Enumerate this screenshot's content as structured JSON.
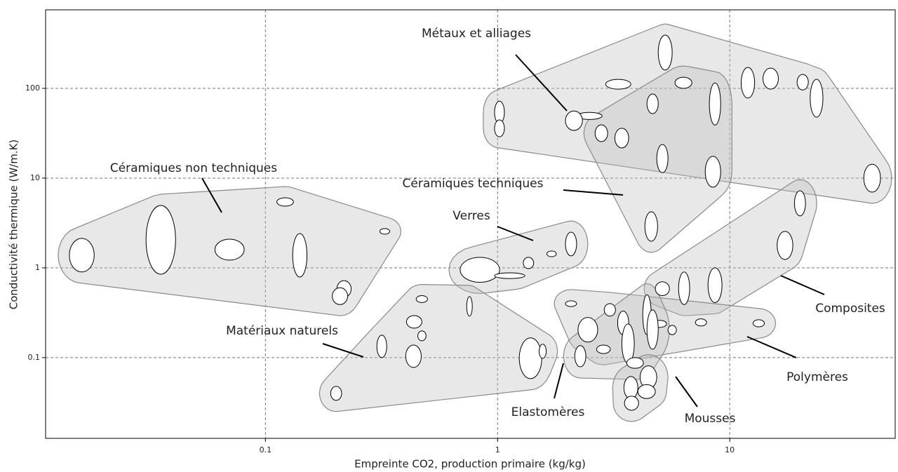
{
  "chart_data": {
    "type": "bubble-envelopes",
    "x_label": "Empreinte CO2, production primaire (kg/kg)",
    "y_label": "Conductivité thermique (W/m.K)",
    "xlog": true,
    "ylog": true,
    "grid": true,
    "xlim": [
      0.0113,
      51.6
    ],
    "ylim": [
      0.0126,
      750
    ],
    "xticks": [
      0.1,
      1,
      10
    ],
    "yticks": [
      0.1,
      1,
      10,
      100
    ],
    "families": [
      {
        "name": "Céramiques non techniques",
        "items": [
          {
            "x": [
              0.0143,
              0.0183
            ],
            "y": [
              0.9,
              2.13
            ]
          },
          {
            "x": [
              0.0306,
              0.041
            ],
            "y": [
              0.85,
              4.96
            ]
          },
          {
            "x": [
              0.0606,
              0.081
            ],
            "y": [
              1.22,
              2.09
            ]
          },
          {
            "x": [
              0.131,
              0.151
            ],
            "y": [
              0.79,
              2.41
            ]
          },
          {
            "x": [
              0.112,
              0.132
            ],
            "y": [
              4.87,
              6.04
            ]
          },
          {
            "x": [
              0.311,
              0.343
            ],
            "y": [
              2.37,
              2.74
            ]
          },
          {
            "x": [
              0.203,
              0.234
            ],
            "y": [
              0.47,
              0.72
            ]
          },
          {
            "x": [
              0.194,
              0.226
            ],
            "y": [
              0.39,
              0.6
            ]
          }
        ]
      },
      {
        "name": "Verres",
        "items": [
          {
            "x": [
              0.69,
              1.02
            ],
            "y": [
              0.69,
              1.31
            ]
          },
          {
            "x": [
              0.97,
              1.31
            ],
            "y": [
              0.76,
              0.88
            ]
          },
          {
            "x": [
              1.29,
              1.43
            ],
            "y": [
              0.98,
              1.31
            ]
          },
          {
            "x": [
              1.63,
              1.79
            ],
            "y": [
              1.33,
              1.54
            ]
          },
          {
            "x": [
              1.96,
              2.19
            ],
            "y": [
              1.36,
              2.5
            ]
          }
        ]
      },
      {
        "name": "Métaux et alliages",
        "items": [
          {
            "x": [
              4.92,
              5.65
            ],
            "y": [
              160,
              392
            ]
          },
          {
            "x": [
              0.97,
              1.07
            ],
            "y": [
              40.6,
              72
            ]
          },
          {
            "x": [
              0.97,
              1.07
            ],
            "y": [
              28.9,
              44.5
            ]
          },
          {
            "x": [
              2.92,
              3.75
            ],
            "y": [
              98,
              126
            ]
          },
          {
            "x": [
              2.19,
              2.82
            ],
            "y": [
              45,
              54
            ]
          },
          {
            "x": [
              1.96,
              2.32
            ],
            "y": [
              34,
              56
            ]
          },
          {
            "x": [
              11.2,
              12.8
            ],
            "y": [
              78,
              171
            ]
          },
          {
            "x": [
              13.9,
              16.2
            ],
            "y": [
              98,
              168
            ]
          },
          {
            "x": [
              22.2,
              25.2
            ],
            "y": [
              47.8,
              126
            ]
          },
          {
            "x": [
              19.5,
              21.8
            ],
            "y": [
              96,
              143
            ]
          },
          {
            "x": [
              37.8,
              44.6
            ],
            "y": [
              6.97,
              14.3
            ]
          }
        ]
      },
      {
        "name": "Céramiques techniques",
        "items": [
          {
            "x": [
              5.81,
              6.87
            ],
            "y": [
              100,
              133
            ]
          },
          {
            "x": [
              8.17,
              9.14
            ],
            "y": [
              39,
              115
            ]
          },
          {
            "x": [
              7.84,
              9.14
            ],
            "y": [
              7.91,
              17.5
            ]
          },
          {
            "x": [
              4.85,
              5.42
            ],
            "y": [
              11.5,
              23.7
            ]
          },
          {
            "x": [
              4.4,
              4.92
            ],
            "y": [
              52.3,
              86.6
            ]
          },
          {
            "x": [
              3.2,
              3.67
            ],
            "y": [
              21.7,
              35.9
            ]
          },
          {
            "x": [
              2.63,
              2.98
            ],
            "y": [
              25.5,
              39.2
            ]
          },
          {
            "x": [
              4.31,
              4.89
            ],
            "y": [
              1.98,
              4.22
            ]
          }
        ]
      },
      {
        "name": "Composites",
        "items": [
          {
            "x": [
              19.0,
              21.2
            ],
            "y": [
              3.79,
              7.23
            ]
          },
          {
            "x": [
              16.0,
              18.7
            ],
            "y": [
              1.24,
              2.55
            ]
          },
          {
            "x": [
              8.06,
              9.26
            ],
            "y": [
              0.41,
              1.0
            ]
          },
          {
            "x": [
              6.02,
              6.72
            ],
            "y": [
              0.39,
              0.9
            ]
          },
          {
            "x": [
              4.78,
              5.5
            ],
            "y": [
              0.49,
              0.7
            ]
          }
        ]
      },
      {
        "name": "Polymères",
        "items": [
          {
            "x": [
              1.96,
              2.19
            ],
            "y": [
              0.37,
              0.43
            ]
          },
          {
            "x": [
              2.22,
              2.7
            ],
            "y": [
              0.149,
              0.28
            ]
          },
          {
            "x": [
              2.88,
              3.22
            ],
            "y": [
              0.29,
              0.4
            ]
          },
          {
            "x": [
              3.29,
              3.67
            ],
            "y": [
              0.18,
              0.33
            ]
          },
          {
            "x": [
              2.67,
              3.06
            ],
            "y": [
              0.111,
              0.138
            ]
          },
          {
            "x": [
              4.65,
              5.35
            ],
            "y": [
              0.217,
              0.26
            ]
          },
          {
            "x": [
              5.42,
              5.89
            ],
            "y": [
              0.18,
              0.229
            ]
          },
          {
            "x": [
              7.11,
              7.95
            ],
            "y": [
              0.225,
              0.27
            ]
          },
          {
            "x": [
              12.6,
              14.1
            ],
            "y": [
              0.22,
              0.264
            ]
          }
        ]
      },
      {
        "name": "Elastomères",
        "items": [
          {
            "x": [
              3.43,
              3.88
            ],
            "y": [
              0.0866,
              0.237
            ]
          },
          {
            "x": [
              4.22,
              4.59
            ],
            "y": [
              0.18,
              0.5
            ]
          },
          {
            "x": [
              4.4,
              4.92
            ],
            "y": [
              0.124,
              0.34
            ]
          },
          {
            "x": [
              3.6,
              4.25
            ],
            "y": [
              0.076,
              0.1
            ]
          },
          {
            "x": [
              2.15,
              2.4
            ],
            "y": [
              0.079,
              0.136
            ]
          }
        ]
      },
      {
        "name": "Mousses",
        "items": [
          {
            "x": [
              4.11,
              4.85
            ],
            "y": [
              0.045,
              0.081
            ]
          },
          {
            "x": [
              4.02,
              4.78
            ],
            "y": [
              0.035,
              0.05
            ]
          },
          {
            "x": [
              3.5,
              4.02
            ],
            "y": [
              0.0346,
              0.0615
            ]
          },
          {
            "x": [
              3.52,
              4.05
            ],
            "y": [
              0.0259,
              0.0372
            ]
          }
        ]
      },
      {
        "name": "Matériaux naturels",
        "items": [
          {
            "x": [
              0.446,
              0.499
            ],
            "y": [
              0.41,
              0.49
            ]
          },
          {
            "x": [
              0.736,
              0.778
            ],
            "y": [
              0.29,
              0.478
            ]
          },
          {
            "x": [
              0.405,
              0.472
            ],
            "y": [
              0.213,
              0.294
            ]
          },
          {
            "x": [
              0.453,
              0.492
            ],
            "y": [
              0.154,
              0.198
            ]
          },
          {
            "x": [
              0.302,
              0.333
            ],
            "y": [
              0.1,
              0.178
            ]
          },
          {
            "x": [
              0.402,
              0.469
            ],
            "y": [
              0.0777,
              0.138
            ]
          },
          {
            "x": [
              1.24,
              1.55
            ],
            "y": [
              0.0583,
              0.166
            ]
          },
          {
            "x": [
              0.191,
              0.213
            ],
            "y": [
              0.0334,
              0.0478
            ]
          },
          {
            "x": [
              1.51,
              1.62
            ],
            "y": [
              0.098,
              0.141
            ]
          }
        ]
      }
    ]
  }
}
